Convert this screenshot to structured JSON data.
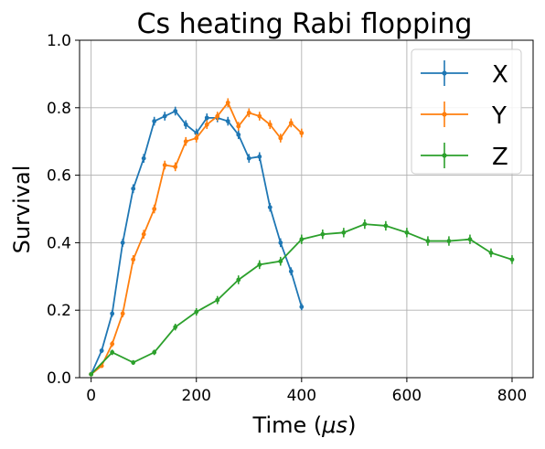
{
  "chart_data": {
    "type": "line",
    "title": "Cs heating Rabi flopping",
    "xlabel": "Time (",
    "xlabel_mu": "μs",
    "xlabel_close": ")",
    "ylabel": "Survival",
    "xlim": [
      -22,
      840
    ],
    "ylim": [
      0,
      1.0
    ],
    "xticks": [
      0,
      200,
      400,
      600,
      800
    ],
    "yticks": [
      0.0,
      0.2,
      0.4,
      0.6,
      0.8,
      1.0
    ],
    "xtick_labels": [
      "0",
      "200",
      "400",
      "600",
      "800"
    ],
    "ytick_labels": [
      "0.0",
      "0.2",
      "0.4",
      "0.6",
      "0.8",
      "1.0"
    ],
    "grid": true,
    "legend_position": "top-right",
    "series": [
      {
        "name": "X",
        "color": "#1f77b4",
        "x": [
          0,
          20,
          40,
          60,
          80,
          100,
          120,
          140,
          160,
          180,
          200,
          220,
          240,
          260,
          280,
          300,
          320,
          340,
          360,
          380,
          400
        ],
        "y": [
          0.01,
          0.08,
          0.19,
          0.4,
          0.56,
          0.65,
          0.76,
          0.775,
          0.79,
          0.75,
          0.725,
          0.77,
          0.77,
          0.76,
          0.72,
          0.65,
          0.655,
          0.505,
          0.4,
          0.315,
          0.21
        ],
        "err": [
          0.004,
          0.007,
          0.01,
          0.012,
          0.013,
          0.013,
          0.013,
          0.013,
          0.013,
          0.013,
          0.013,
          0.013,
          0.013,
          0.013,
          0.013,
          0.013,
          0.013,
          0.013,
          0.013,
          0.012,
          0.01
        ]
      },
      {
        "name": "Y",
        "color": "#ff7f0e",
        "x": [
          0,
          20,
          40,
          60,
          80,
          100,
          120,
          140,
          160,
          180,
          200,
          220,
          240,
          260,
          280,
          300,
          320,
          340,
          360,
          380,
          400
        ],
        "y": [
          0.01,
          0.035,
          0.1,
          0.19,
          0.35,
          0.425,
          0.5,
          0.63,
          0.625,
          0.7,
          0.71,
          0.75,
          0.775,
          0.815,
          0.745,
          0.785,
          0.775,
          0.75,
          0.71,
          0.755,
          0.725
        ],
        "err": [
          0.004,
          0.006,
          0.009,
          0.011,
          0.013,
          0.013,
          0.013,
          0.013,
          0.013,
          0.013,
          0.013,
          0.013,
          0.013,
          0.013,
          0.013,
          0.013,
          0.013,
          0.013,
          0.013,
          0.013,
          0.013
        ]
      },
      {
        "name": "Z",
        "color": "#2ca02c",
        "x": [
          0,
          40,
          80,
          120,
          160,
          200,
          240,
          280,
          320,
          360,
          400,
          440,
          480,
          520,
          560,
          600,
          640,
          680,
          720,
          760,
          800
        ],
        "y": [
          0.01,
          0.075,
          0.045,
          0.075,
          0.15,
          0.195,
          0.23,
          0.29,
          0.335,
          0.345,
          0.41,
          0.425,
          0.43,
          0.455,
          0.45,
          0.43,
          0.405,
          0.405,
          0.41,
          0.37,
          0.35
        ],
        "err": [
          0.004,
          0.008,
          0.007,
          0.008,
          0.01,
          0.011,
          0.012,
          0.013,
          0.013,
          0.013,
          0.014,
          0.014,
          0.014,
          0.014,
          0.014,
          0.014,
          0.014,
          0.014,
          0.014,
          0.013,
          0.013
        ]
      }
    ]
  }
}
